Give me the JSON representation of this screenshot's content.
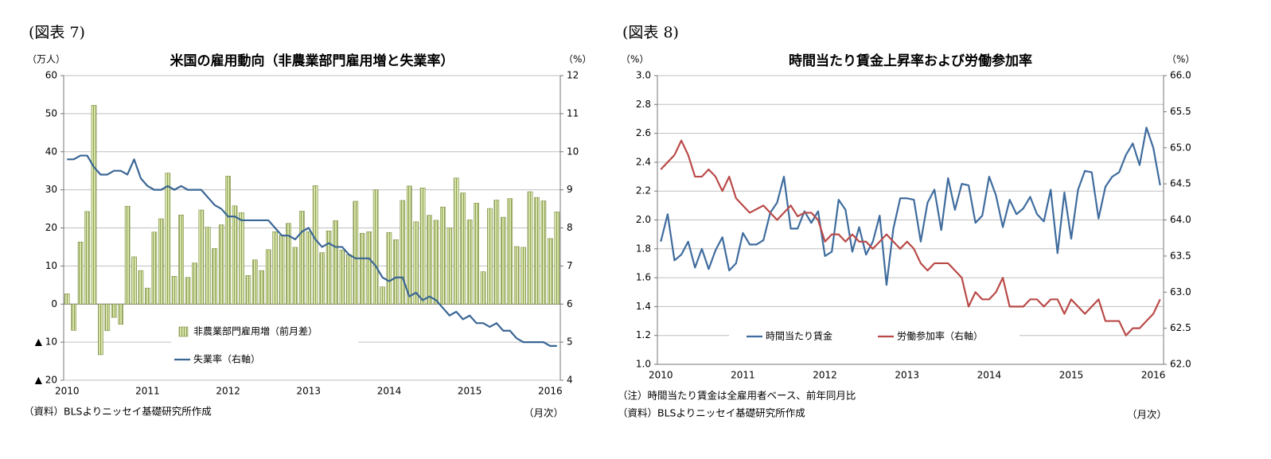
{
  "chart_data": [
    {
      "type": "bar",
      "figure_label": "(図表 7)",
      "title": "米国の雇用動向（非農業部門雇用増と失業率）",
      "ylabel": "（万人）",
      "y2label": "（%）",
      "xlabel": "（月次）",
      "notes": [
        "（資料）BLSよりニッセイ基礎研究所作成"
      ],
      "legend_layout": "column",
      "grid": true,
      "categories": [
        "2010",
        null,
        null,
        null,
        null,
        null,
        null,
        null,
        null,
        null,
        null,
        null,
        "2011",
        null,
        null,
        null,
        null,
        null,
        null,
        null,
        null,
        null,
        null,
        null,
        "2012",
        null,
        null,
        null,
        null,
        null,
        null,
        null,
        null,
        null,
        null,
        null,
        "2013",
        null,
        null,
        null,
        null,
        null,
        null,
        null,
        null,
        null,
        null,
        null,
        "2014",
        null,
        null,
        null,
        null,
        null,
        null,
        null,
        null,
        null,
        null,
        null,
        "2015",
        null,
        null,
        null,
        null,
        null,
        null,
        null,
        null,
        null,
        null,
        null,
        "2016",
        null
      ],
      "ylim": [
        -20,
        60
      ],
      "yticks": [
        {
          "value": -20,
          "label": "▲ 20"
        },
        {
          "value": -10,
          "label": "▲ 10"
        },
        0,
        10,
        20,
        30,
        40,
        50,
        60
      ],
      "y2lim": [
        4,
        12
      ],
      "y2ticks": [
        4,
        5,
        6,
        7,
        8,
        9,
        10,
        11,
        12
      ],
      "series": [
        {
          "name": "非農業部門雇用増（前月差）",
          "type": "bar",
          "color": "#d7e4a9",
          "values": [
            2.7,
            -6.9,
            16.3,
            24.3,
            52.2,
            -13.3,
            -7.0,
            -3.5,
            -5.3,
            25.7,
            12.4,
            8.8,
            4.2,
            18.9,
            22.4,
            34.4,
            7.3,
            23.4,
            7.0,
            10.8,
            24.7,
            20.2,
            14.6,
            20.8,
            33.6,
            25.8,
            24.0,
            7.5,
            11.6,
            8.8,
            14.3,
            19.0,
            18.1,
            21.2,
            14.9,
            24.4,
            19.0,
            31.1,
            13.5,
            19.2,
            21.9,
            14.2,
            13.0,
            27.0,
            18.6,
            19.0,
            30.0,
            4.5,
            18.8,
            16.9,
            27.2,
            31.0,
            21.6,
            30.5,
            23.3,
            22.0,
            25.5,
            20.0,
            33.1,
            29.2,
            22.1,
            26.5,
            8.5,
            25.1,
            27.3,
            22.8,
            27.7,
            15.1,
            14.9,
            29.5,
            28.0,
            27.1,
            17.2,
            24.2
          ]
        },
        {
          "name": "失業率（右軸）",
          "type": "line",
          "axis": "y2",
          "color": "#3a6694",
          "values": [
            9.8,
            9.8,
            9.9,
            9.9,
            9.6,
            9.4,
            9.4,
            9.5,
            9.5,
            9.4,
            9.8,
            9.3,
            9.1,
            9.0,
            9.0,
            9.1,
            9.0,
            9.1,
            9.0,
            9.0,
            9.0,
            8.8,
            8.6,
            8.5,
            8.3,
            8.3,
            8.2,
            8.2,
            8.2,
            8.2,
            8.2,
            8.0,
            7.8,
            7.8,
            7.7,
            7.9,
            8.0,
            7.7,
            7.5,
            7.6,
            7.5,
            7.5,
            7.3,
            7.2,
            7.2,
            7.2,
            7.0,
            6.7,
            6.6,
            6.7,
            6.7,
            6.2,
            6.3,
            6.1,
            6.2,
            6.1,
            5.9,
            5.7,
            5.8,
            5.6,
            5.7,
            5.5,
            5.5,
            5.4,
            5.5,
            5.3,
            5.3,
            5.1,
            5.0,
            5.0,
            5.0,
            5.0,
            4.9,
            4.9
          ]
        }
      ]
    },
    {
      "type": "line",
      "figure_label": "(図表 8)",
      "title": "時間当たり賃金上昇率および労働参加率",
      "ylabel": "（%）",
      "y2label": "（%）",
      "xlabel": "（月次）",
      "notes": [
        "（注）時間当たり賃金は全雇用者ベース、前年同月比",
        "（資料）BLSよりニッセイ基礎研究所作成"
      ],
      "legend_layout": "row",
      "grid": true,
      "categories": [
        "2010",
        null,
        null,
        null,
        null,
        null,
        null,
        null,
        null,
        null,
        null,
        null,
        "2011",
        null,
        null,
        null,
        null,
        null,
        null,
        null,
        null,
        null,
        null,
        null,
        "2012",
        null,
        null,
        null,
        null,
        null,
        null,
        null,
        null,
        null,
        null,
        null,
        "2013",
        null,
        null,
        null,
        null,
        null,
        null,
        null,
        null,
        null,
        null,
        null,
        "2014",
        null,
        null,
        null,
        null,
        null,
        null,
        null,
        null,
        null,
        null,
        null,
        "2015",
        null,
        null,
        null,
        null,
        null,
        null,
        null,
        null,
        null,
        null,
        null,
        "2016",
        null
      ],
      "ylim": [
        1.0,
        3.0
      ],
      "yticks": [
        {
          "value": 1.0,
          "label": "1.0"
        },
        1.2,
        1.4,
        1.6,
        1.8,
        {
          "value": 2.0,
          "label": "2.0"
        },
        2.2,
        2.4,
        2.6,
        2.8,
        {
          "value": 3.0,
          "label": "3.0"
        }
      ],
      "y2lim": [
        62.0,
        66.0
      ],
      "y2ticks": [
        {
          "value": 62.0,
          "label": "62.0"
        },
        62.5,
        {
          "value": 63.0,
          "label": "63.0"
        },
        63.5,
        {
          "value": 64.0,
          "label": "64.0"
        },
        64.5,
        {
          "value": 65.0,
          "label": "65.0"
        },
        65.5,
        {
          "value": 66.0,
          "label": "66.0"
        }
      ],
      "series": [
        {
          "name": "時間当たり賃金",
          "type": "line",
          "color": "#3f6c9e",
          "values": [
            1.85,
            2.04,
            1.72,
            1.76,
            1.85,
            1.67,
            1.8,
            1.66,
            1.79,
            1.88,
            1.65,
            1.7,
            1.91,
            1.83,
            1.83,
            1.86,
            2.05,
            2.12,
            2.3,
            1.94,
            1.94,
            2.06,
            1.98,
            2.06,
            1.75,
            1.78,
            2.14,
            2.07,
            1.78,
            1.95,
            1.76,
            1.85,
            2.03,
            1.55,
            1.94,
            2.15,
            2.15,
            2.14,
            1.85,
            2.12,
            2.21,
            1.93,
            2.29,
            2.07,
            2.25,
            2.24,
            1.98,
            2.03,
            2.3,
            2.17,
            1.95,
            2.14,
            2.04,
            2.08,
            2.16,
            2.04,
            1.99,
            2.21,
            1.77,
            2.19,
            1.87,
            2.21,
            2.34,
            2.33,
            2.01,
            2.23,
            2.3,
            2.33,
            2.45,
            2.53,
            2.38,
            2.64,
            2.5,
            2.24
          ]
        },
        {
          "name": "労働参加率（右軸）",
          "type": "line",
          "axis": "y2",
          "color": "#b94a48",
          "values": [
            64.7,
            64.8,
            64.9,
            65.1,
            64.9,
            64.6,
            64.6,
            64.7,
            64.6,
            64.4,
            64.6,
            64.3,
            64.2,
            64.1,
            64.15,
            64.2,
            64.1,
            64.0,
            64.1,
            64.2,
            64.05,
            64.1,
            64.1,
            64.0,
            63.7,
            63.8,
            63.8,
            63.7,
            63.8,
            63.7,
            63.7,
            63.6,
            63.7,
            63.8,
            63.7,
            63.6,
            63.7,
            63.6,
            63.4,
            63.3,
            63.4,
            63.4,
            63.4,
            63.3,
            63.2,
            62.8,
            63.0,
            62.9,
            62.9,
            63.0,
            63.2,
            62.8,
            62.8,
            62.8,
            62.9,
            62.9,
            62.8,
            62.9,
            62.9,
            62.7,
            62.9,
            62.8,
            62.7,
            62.8,
            62.9,
            62.6,
            62.6,
            62.6,
            62.4,
            62.5,
            62.5,
            62.6,
            62.7,
            62.9
          ]
        }
      ]
    }
  ]
}
